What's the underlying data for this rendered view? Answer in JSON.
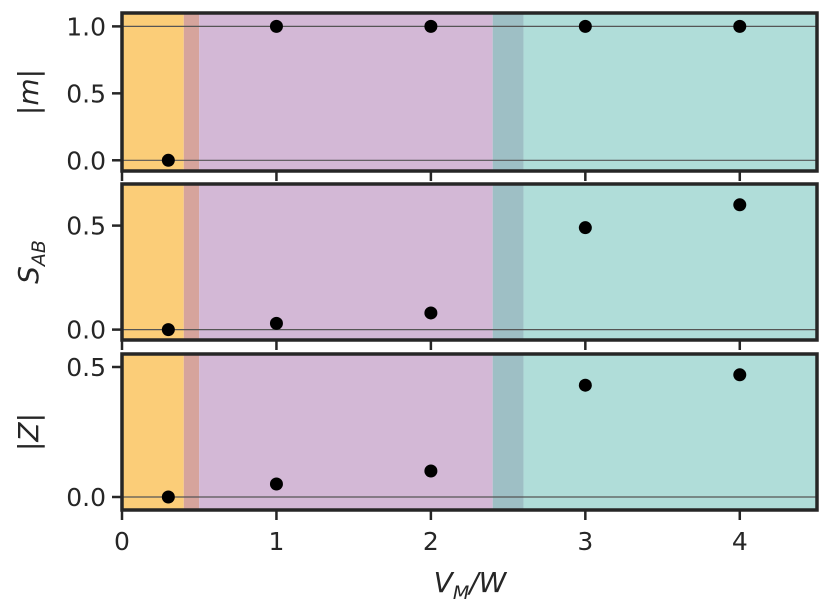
{
  "chart_data": {
    "type": "scatter",
    "layout": "three stacked panels sharing the x axis",
    "xlabel_main": "V",
    "xlabel_sub": "M",
    "xlabel_tail": "/W",
    "xlim": [
      0,
      4.5
    ],
    "xticks": [
      "0",
      "1",
      "2",
      "3",
      "4"
    ],
    "xtick_values": [
      0,
      1,
      2,
      3,
      4
    ],
    "regions": [
      {
        "x0": 0.0,
        "x1": 0.4,
        "color": "#fbcd78"
      },
      {
        "x0": 0.4,
        "x1": 0.5,
        "color": "#d6a49c"
      },
      {
        "x0": 0.5,
        "x1": 2.4,
        "color": "#d3b8d6"
      },
      {
        "x0": 2.4,
        "x1": 2.6,
        "color": "#9ebfc5"
      },
      {
        "x0": 2.6,
        "x1": 4.5,
        "color": "#b0ddd9"
      }
    ],
    "marker_color": "#000000",
    "panels": [
      {
        "ylabel_main": "|m|",
        "ylabel_sub": "",
        "ylim": [
          -0.08,
          1.1
        ],
        "yticks": [
          "0.0",
          "0.5",
          "1.0"
        ],
        "ytick_values": [
          0,
          0.5,
          1.0
        ],
        "hlines": [
          0,
          1.0
        ],
        "x": [
          0.3,
          1,
          2,
          3,
          4
        ],
        "y": [
          0.0,
          1.0,
          1.0,
          1.0,
          1.0
        ]
      },
      {
        "ylabel_main": "S",
        "ylabel_sub": "AB",
        "ylim": [
          -0.05,
          0.7
        ],
        "yticks": [
          "0.0",
          "0.5"
        ],
        "ytick_values": [
          0,
          0.5
        ],
        "hlines": [
          0
        ],
        "x": [
          0.3,
          1,
          2,
          3,
          4
        ],
        "y": [
          0.0,
          0.03,
          0.08,
          0.49,
          0.6
        ]
      },
      {
        "ylabel_main": "|Z|",
        "ylabel_sub": "",
        "ylim": [
          -0.05,
          0.55
        ],
        "yticks": [
          "0.0",
          "0.5"
        ],
        "ytick_values": [
          0,
          0.5
        ],
        "hlines": [
          0
        ],
        "x": [
          0.3,
          1,
          2,
          3,
          4
        ],
        "y": [
          0.0,
          0.05,
          0.1,
          0.43,
          0.47
        ]
      }
    ]
  }
}
